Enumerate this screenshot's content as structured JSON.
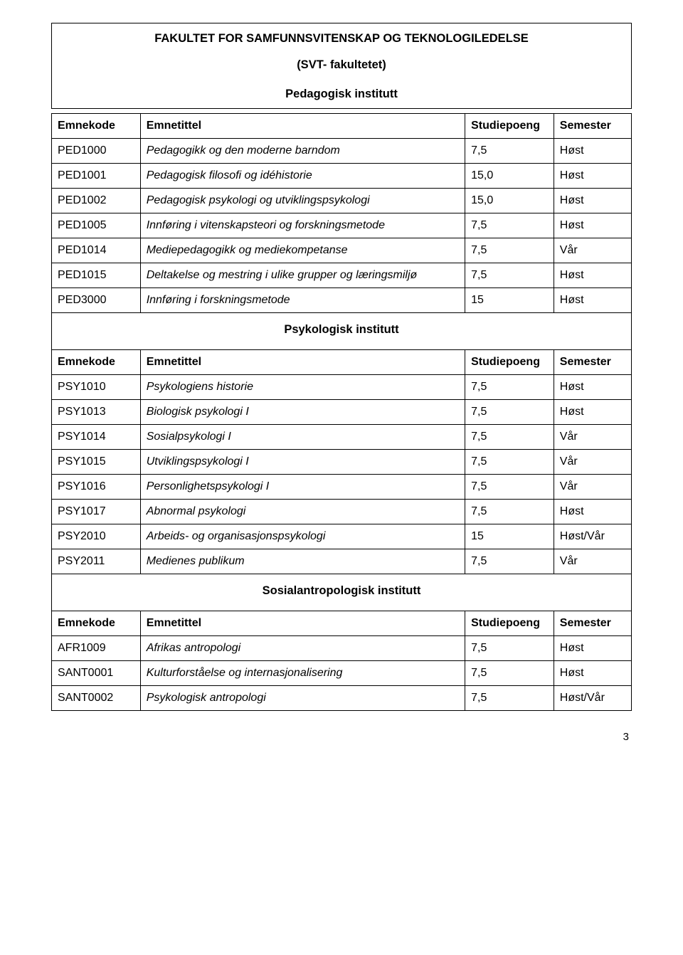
{
  "heading_main": "FAKULTET FOR SAMFUNNSVITENSKAP OG TEKNOLOGILEDELSE",
  "heading_sub": "(SVT- fakultetet)",
  "columns": {
    "code": "Emnekode",
    "title": "Emnetittel",
    "sp": "Studiepoeng",
    "sem": "Semester"
  },
  "sections": [
    {
      "title": "Pedagogisk institutt",
      "rows": [
        {
          "code": "PED1000",
          "title": "Pedagogikk og den moderne barndom",
          "sp": "7,5",
          "sem": "Høst"
        },
        {
          "code": "PED1001",
          "title": "Pedagogisk filosofi og idéhistorie",
          "sp": "15,0",
          "sem": "Høst"
        },
        {
          "code": "PED1002",
          "title": "Pedagogisk psykologi og utviklingspsykologi",
          "sp": "15,0",
          "sem": "Høst"
        },
        {
          "code": "PED1005",
          "title": "Innføring i vitenskapsteori og forskningsmetode",
          "sp": "7,5",
          "sem": "Høst"
        },
        {
          "code": "PED1014",
          "title": "Mediepedagogikk og mediekompetanse",
          "sp": "7,5",
          "sem": "Vår"
        },
        {
          "code": "PED1015",
          "title": "Deltakelse og mestring i ulike grupper og læringsmiljø",
          "sp": "7,5",
          "sem": "Høst"
        },
        {
          "code": "PED3000",
          "title": "Innføring i forskningsmetode",
          "sp": "15",
          "sem": "Høst"
        }
      ]
    },
    {
      "title": "Psykologisk institutt",
      "rows": [
        {
          "code": "PSY1010",
          "title": "Psykologiens historie",
          "sp": "7,5",
          "sem": "Høst"
        },
        {
          "code": "PSY1013",
          "title": "Biologisk psykologi I",
          "sp": "7,5",
          "sem": "Høst"
        },
        {
          "code": "PSY1014",
          "title": "Sosialpsykologi I",
          "sp": "7,5",
          "sem": "Vår"
        },
        {
          "code": "PSY1015",
          "title": "Utviklingspsykologi I",
          "sp": "7,5",
          "sem": "Vår"
        },
        {
          "code": "PSY1016",
          "title": "Personlighetspsykologi I",
          "sp": "7,5",
          "sem": "Vår"
        },
        {
          "code": "PSY1017",
          "title": "Abnormal psykologi",
          "sp": "7,5",
          "sem": "Høst"
        },
        {
          "code": "PSY2010",
          "title": "Arbeids- og organisasjonspsykologi",
          "sp": "15",
          "sem": "Høst/Vår"
        },
        {
          "code": "PSY2011",
          "title": "Medienes publikum",
          "sp": "7,5",
          "sem": "Vår"
        }
      ]
    },
    {
      "title": "Sosialantropologisk institutt",
      "rows": [
        {
          "code": "AFR1009",
          "title": "Afrikas antropologi",
          "sp": "7,5",
          "sem": "Høst"
        },
        {
          "code": "SANT0001",
          "title": "Kulturforståelse og internasjonalisering",
          "sp": "7,5",
          "sem": "Høst"
        },
        {
          "code": "SANT0002",
          "title": "Psykologisk antropologi",
          "sp": "7,5",
          "sem": "Høst/Vår"
        }
      ]
    }
  ],
  "page_number": "3"
}
